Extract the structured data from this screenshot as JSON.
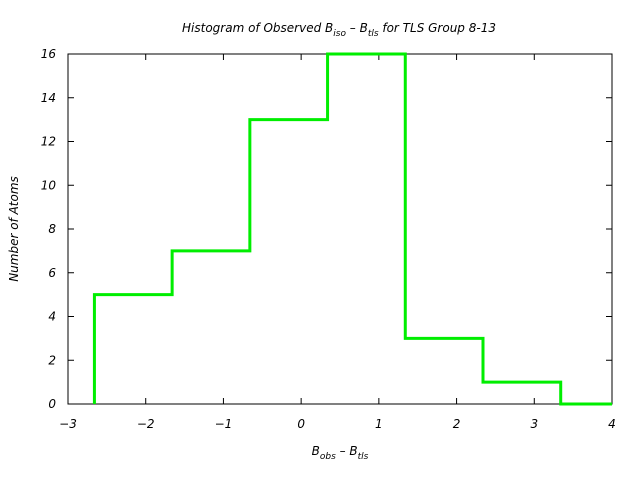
{
  "chart_data": {
    "type": "histogram",
    "title_parts": [
      {
        "text": "Histogram of Observed B",
        "sub": false
      },
      {
        "text": "iso",
        "sub": true
      },
      {
        "text": " – B",
        "sub": false
      },
      {
        "text": "tls",
        "sub": true
      },
      {
        "text": " for TLS Group 8-13",
        "sub": false
      }
    ],
    "xlabel_parts": [
      {
        "text": "B",
        "sub": false
      },
      {
        "text": "obs",
        "sub": true
      },
      {
        "text": " – B",
        "sub": false
      },
      {
        "text": "tls",
        "sub": true
      }
    ],
    "ylabel": "Number of Atoms",
    "xlim": [
      -3,
      4
    ],
    "ylim": [
      0,
      16
    ],
    "x_ticks": [
      "−3",
      "−2",
      "−1",
      "0",
      "1",
      "2",
      "3",
      "4"
    ],
    "x_tick_values": [
      -3,
      -2,
      -1,
      0,
      1,
      2,
      3,
      4
    ],
    "y_ticks": [
      "0",
      "2",
      "4",
      "6",
      "8",
      "10",
      "12",
      "14",
      "16"
    ],
    "y_tick_values": [
      0,
      2,
      4,
      6,
      8,
      10,
      12,
      14,
      16
    ],
    "bin_edges": [
      -2.66,
      -1.66,
      -0.66,
      0.34,
      1.34,
      2.34,
      3.34,
      4.0
    ],
    "counts": [
      5,
      7,
      13,
      16,
      3,
      1,
      0
    ],
    "line_color": "#00ee00",
    "grid": false
  }
}
